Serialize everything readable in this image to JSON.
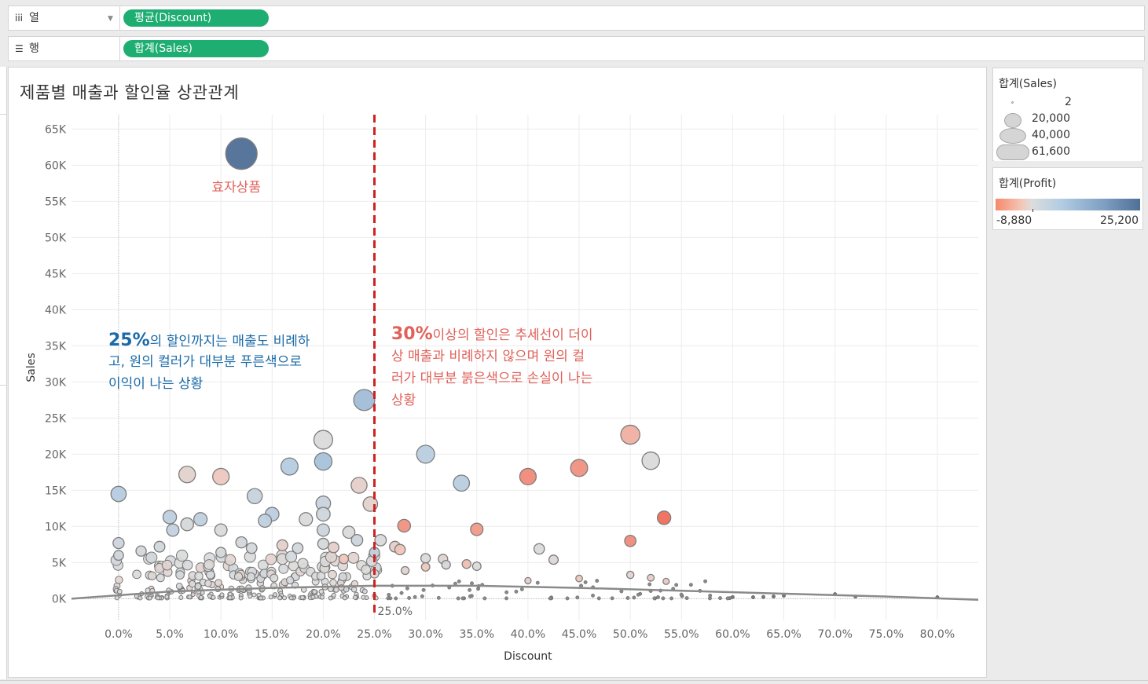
{
  "shelves": {
    "columns": {
      "label": "열",
      "pill": "평균(Discount)"
    },
    "rows": {
      "label": "행",
      "pill": "합계(Sales)"
    }
  },
  "sheet": {
    "title": "제품별 매출과 할인율 상관관계"
  },
  "colors": {
    "pill": "#1fae72",
    "refline": "#cc2222",
    "annot_blue": "#1a6aa8",
    "annot_red": "#e0625a",
    "trend": "#8a8a8a",
    "grid": "#ececec"
  },
  "legend_size": {
    "title": "합계(Sales)",
    "items": [
      "2",
      "20,000",
      "40,000",
      "61,600"
    ]
  },
  "legend_color": {
    "title": "합계(Profit)",
    "min": "-8,880",
    "max": "25,200"
  },
  "chart_data": {
    "type": "scatter",
    "xlabel": "Discount",
    "ylabel": "Sales",
    "xlim": [
      -0.046,
      0.84
    ],
    "ylim": [
      -3000,
      67000
    ],
    "x_ticks": [
      0,
      0.05,
      0.1,
      0.15,
      0.2,
      0.25,
      0.3,
      0.35,
      0.4,
      0.45,
      0.5,
      0.55,
      0.6,
      0.65,
      0.7,
      0.75,
      0.8
    ],
    "x_tick_labels": [
      "0.0%",
      "5.0%",
      "10.0%",
      "15.0%",
      "20.0%",
      "25.0%",
      "30.0%",
      "35.0%",
      "40.0%",
      "45.0%",
      "50.0%",
      "55.0%",
      "60.0%",
      "65.0%",
      "70.0%",
      "75.0%",
      "80.0%"
    ],
    "y_ticks": [
      0,
      5000,
      10000,
      15000,
      20000,
      25000,
      30000,
      35000,
      40000,
      45000,
      50000,
      55000,
      60000,
      65000
    ],
    "y_tick_labels": [
      "0K",
      "5K",
      "10K",
      "15K",
      "20K",
      "25K",
      "30K",
      "35K",
      "40K",
      "45K",
      "50K",
      "55K",
      "60K",
      "65K"
    ],
    "grid": true,
    "reference_line": {
      "x": 0.25,
      "label": "25.0%"
    },
    "trend_line": [
      [
        -0.046,
        0
      ],
      [
        0.05,
        1000
      ],
      [
        0.15,
        1500
      ],
      [
        0.25,
        1800
      ],
      [
        0.35,
        1800
      ],
      [
        0.45,
        1500
      ],
      [
        0.55,
        1100
      ],
      [
        0.65,
        700
      ],
      [
        0.75,
        300
      ],
      [
        0.84,
        -150
      ]
    ],
    "size_scale": {
      "min": 2,
      "max": 61600
    },
    "color_scale": {
      "min": -8880,
      "max": 25200
    },
    "points": [
      {
        "x": 0.12,
        "y": 61600,
        "sales": 61600,
        "profit": 25200
      },
      {
        "x": 0.24,
        "y": 27500,
        "sales": 27500,
        "profit": 10000
      },
      {
        "x": 0.2,
        "y": 22000,
        "sales": 22000,
        "profit": 0
      },
      {
        "x": 0.2,
        "y": 19000,
        "sales": 19000,
        "profit": 9000
      },
      {
        "x": 0.167,
        "y": 18300,
        "sales": 18300,
        "profit": 6500
      },
      {
        "x": 0.3,
        "y": 20000,
        "sales": 20000,
        "profit": 6000
      },
      {
        "x": 0.335,
        "y": 16000,
        "sales": 16000,
        "profit": 6000
      },
      {
        "x": 0.0,
        "y": 14500,
        "sales": 14500,
        "profit": 6500
      },
      {
        "x": 0.067,
        "y": 17200,
        "sales": 17200,
        "profit": -1200
      },
      {
        "x": 0.1,
        "y": 16900,
        "sales": 16900,
        "profit": -2500
      },
      {
        "x": 0.133,
        "y": 14200,
        "sales": 14200,
        "profit": 3500
      },
      {
        "x": 0.2,
        "y": 13200,
        "sales": 13200,
        "profit": 3000
      },
      {
        "x": 0.235,
        "y": 15700,
        "sales": 15700,
        "profit": -1500
      },
      {
        "x": 0.246,
        "y": 13100,
        "sales": 13100,
        "profit": -1200
      },
      {
        "x": 0.4,
        "y": 16900,
        "sales": 16900,
        "profit": -7000
      },
      {
        "x": 0.45,
        "y": 18100,
        "sales": 18100,
        "profit": -6500
      },
      {
        "x": 0.5,
        "y": 22700,
        "sales": 22700,
        "profit": -4500
      },
      {
        "x": 0.52,
        "y": 19100,
        "sales": 19100,
        "profit": 0
      },
      {
        "x": 0.533,
        "y": 11200,
        "sales": 11200,
        "profit": -8880
      },
      {
        "x": 0.5,
        "y": 8000,
        "sales": 8000,
        "profit": -7000
      },
      {
        "x": 0.35,
        "y": 9600,
        "sales": 9600,
        "profit": -6000
      },
      {
        "x": 0.279,
        "y": 10100,
        "sales": 10100,
        "profit": -6500
      },
      {
        "x": 0.05,
        "y": 11300,
        "sales": 11300,
        "profit": 5000
      },
      {
        "x": 0.053,
        "y": 9500,
        "sales": 9500,
        "profit": 4000
      },
      {
        "x": 0.067,
        "y": 10300,
        "sales": 10300,
        "profit": 1000
      },
      {
        "x": 0.08,
        "y": 11000,
        "sales": 11000,
        "profit": 4500
      },
      {
        "x": 0.1,
        "y": 9500,
        "sales": 9500,
        "profit": 0
      },
      {
        "x": 0.143,
        "y": 10800,
        "sales": 10800,
        "profit": 4500
      },
      {
        "x": 0.15,
        "y": 11700,
        "sales": 11700,
        "profit": 5500
      },
      {
        "x": 0.183,
        "y": 11000,
        "sales": 11000,
        "profit": 0
      },
      {
        "x": 0.2,
        "y": 11700,
        "sales": 11700,
        "profit": 2000
      },
      {
        "x": 0.2,
        "y": 9500,
        "sales": 9500,
        "profit": 2500
      },
      {
        "x": 0.225,
        "y": 9200,
        "sales": 9200,
        "profit": 0
      },
      {
        "x": 0.0,
        "y": 7700,
        "sales": 7700,
        "profit": 2500
      },
      {
        "x": 0.0,
        "y": 6000,
        "sales": 6000,
        "profit": 2000
      },
      {
        "x": 0.022,
        "y": 6600,
        "sales": 6600,
        "profit": 1000
      },
      {
        "x": 0.04,
        "y": 7200,
        "sales": 7200,
        "profit": 1500
      },
      {
        "x": 0.1,
        "y": 6400,
        "sales": 6400,
        "profit": 500
      },
      {
        "x": 0.12,
        "y": 7800,
        "sales": 7800,
        "profit": 1200
      },
      {
        "x": 0.13,
        "y": 7000,
        "sales": 7000,
        "profit": 800
      },
      {
        "x": 0.16,
        "y": 7400,
        "sales": 7400,
        "profit": -1500
      },
      {
        "x": 0.175,
        "y": 7000,
        "sales": 7000,
        "profit": 1500
      },
      {
        "x": 0.2,
        "y": 7600,
        "sales": 7600,
        "profit": 1000
      },
      {
        "x": 0.21,
        "y": 7100,
        "sales": 7100,
        "profit": -1500
      },
      {
        "x": 0.22,
        "y": 5500,
        "sales": 5500,
        "profit": -3000
      },
      {
        "x": 0.233,
        "y": 8100,
        "sales": 8100,
        "profit": 2500
      },
      {
        "x": 0.25,
        "y": 6400,
        "sales": 6400,
        "profit": 4500
      },
      {
        "x": 0.256,
        "y": 8100,
        "sales": 8100,
        "profit": 0
      },
      {
        "x": 0.27,
        "y": 7200,
        "sales": 7200,
        "profit": -1500
      },
      {
        "x": 0.275,
        "y": 6800,
        "sales": 6800,
        "profit": -3000
      },
      {
        "x": 0.3,
        "y": 5600,
        "sales": 5600,
        "profit": 0
      },
      {
        "x": 0.317,
        "y": 5500,
        "sales": 5500,
        "profit": -800
      },
      {
        "x": 0.32,
        "y": 4700,
        "sales": 4700,
        "profit": 1000
      },
      {
        "x": 0.35,
        "y": 4500,
        "sales": 4500,
        "profit": 0
      },
      {
        "x": 0.411,
        "y": 6900,
        "sales": 6900,
        "profit": 0
      },
      {
        "x": 0.425,
        "y": 5400,
        "sales": 5400,
        "profit": -400
      },
      {
        "x": 0.3,
        "y": 4400,
        "sales": 4400,
        "profit": -2500
      },
      {
        "x": 0.34,
        "y": 4800,
        "sales": 4800,
        "profit": -3500
      },
      {
        "x": 0.28,
        "y": 3900,
        "sales": 3900,
        "profit": -1000
      },
      {
        "x": 0.4,
        "y": 2500,
        "sales": 2500,
        "profit": -1500
      },
      {
        "x": 0.45,
        "y": 2800,
        "sales": 2800,
        "profit": -2500
      },
      {
        "x": 0.5,
        "y": 3300,
        "sales": 3300,
        "profit": -1000
      },
      {
        "x": 0.52,
        "y": 2900,
        "sales": 2900,
        "profit": -2000
      },
      {
        "x": 0.535,
        "y": 2400,
        "sales": 2400,
        "profit": -2500
      }
    ]
  },
  "annotations": {
    "point_label": "효자상품",
    "left_strong": "25%",
    "left_rest1": "의 할인까지는 매출도 비례하",
    "left_line2": "고, 원의 컬러가 대부분 푸른색으로",
    "left_line3": "이익이 나는 상황",
    "right_strong": "30%",
    "right_rest1": "이상의 할인은 추세선이 더이",
    "right_line2": "상 매출과 비례하지 않으며 원의 컬",
    "right_line3": "러가 대부분 붉은색으로 손실이 나는",
    "right_line4": "상황"
  }
}
